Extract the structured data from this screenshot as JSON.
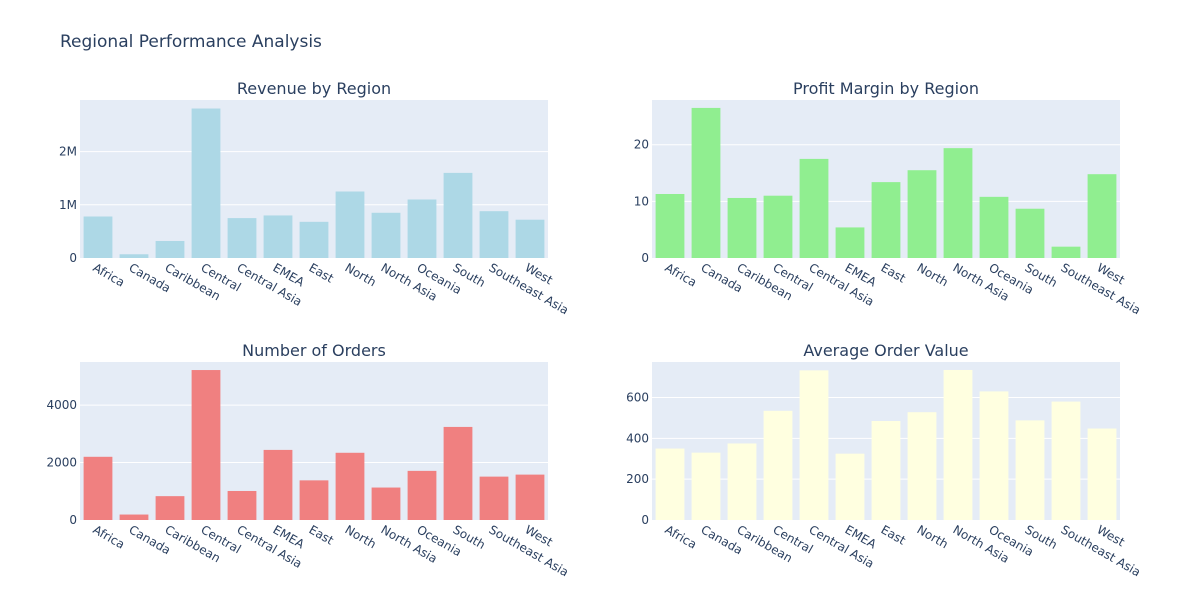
{
  "title": "Regional Performance Analysis",
  "chart_data": [
    {
      "type": "bar",
      "title": "Revenue by Region",
      "color": "#add8e6",
      "categories": [
        "Africa",
        "Canada",
        "Caribbean",
        "Central",
        "Central Asia",
        "EMEA",
        "East",
        "North",
        "North Asia",
        "Oceania",
        "South",
        "Southeast Asia",
        "West"
      ],
      "values": [
        780000,
        70000,
        320000,
        2810000,
        750000,
        800000,
        680000,
        1250000,
        850000,
        1100000,
        1600000,
        880000,
        720000
      ],
      "ylim": [
        0,
        2970000
      ],
      "yticks": [
        0,
        1000000,
        2000000
      ],
      "yticklabels": [
        "0",
        "1M",
        "2M"
      ]
    },
    {
      "type": "bar",
      "title": "Profit Margin by Region",
      "color": "#90ee90",
      "categories": [
        "Africa",
        "Canada",
        "Caribbean",
        "Central",
        "Central Asia",
        "EMEA",
        "East",
        "North",
        "North Asia",
        "Oceania",
        "South",
        "Southeast Asia",
        "West"
      ],
      "values": [
        11.3,
        26.5,
        10.6,
        11.0,
        17.5,
        5.4,
        13.4,
        15.5,
        19.4,
        10.8,
        8.7,
        2.0,
        14.8
      ],
      "ylim": [
        0,
        27.9
      ],
      "yticks": [
        0,
        10,
        20
      ],
      "yticklabels": [
        "0",
        "10",
        "20"
      ]
    },
    {
      "type": "bar",
      "title": "Number of Orders",
      "color": "#f08080",
      "categories": [
        "Africa",
        "Canada",
        "Caribbean",
        "Central",
        "Central Asia",
        "EMEA",
        "East",
        "North",
        "North Asia",
        "Oceania",
        "South",
        "Southeast Asia",
        "West"
      ],
      "values": [
        2200,
        190,
        830,
        5220,
        1010,
        2440,
        1380,
        2340,
        1130,
        1710,
        3240,
        1510,
        1580
      ],
      "ylim": [
        0,
        5500
      ],
      "yticks": [
        0,
        2000,
        4000
      ],
      "yticklabels": [
        "0",
        "2000",
        "4000"
      ]
    },
    {
      "type": "bar",
      "title": "Average Order Value",
      "color": "#ffffe0",
      "categories": [
        "Africa",
        "Canada",
        "Caribbean",
        "Central",
        "Central Asia",
        "EMEA",
        "East",
        "North",
        "North Asia",
        "Oceania",
        "South",
        "Southeast Asia",
        "West"
      ],
      "values": [
        350,
        330,
        375,
        535,
        733,
        325,
        485,
        528,
        735,
        630,
        488,
        580,
        448
      ],
      "ylim": [
        0,
        774
      ],
      "yticks": [
        0,
        200,
        400,
        600
      ],
      "yticklabels": [
        "0",
        "200",
        "400",
        "600"
      ]
    }
  ]
}
